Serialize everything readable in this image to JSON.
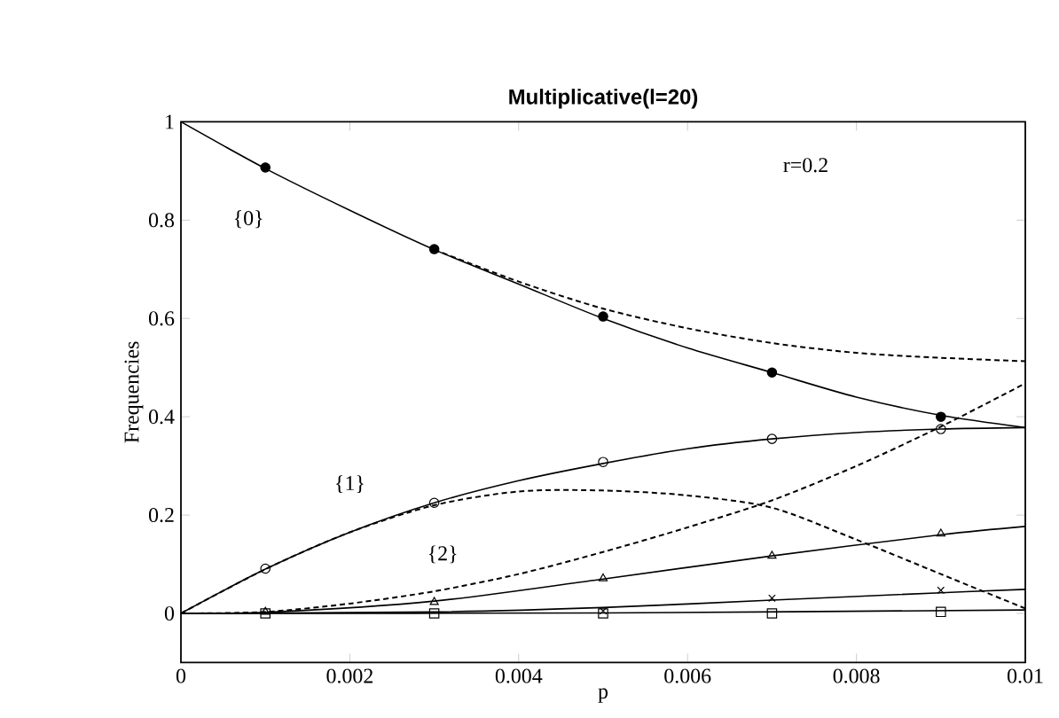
{
  "chart_data": {
    "type": "line",
    "title": "Multiplicative(l=20)",
    "xlabel": "p",
    "ylabel": "Frequencies",
    "xlim": [
      0,
      0.01
    ],
    "ylim": [
      -0.1,
      1
    ],
    "xticks": [
      0,
      0.002,
      0.004,
      0.006,
      0.008,
      0.01
    ],
    "yticks": [
      0,
      0.2,
      0.4,
      0.6,
      0.8,
      1
    ],
    "annotations": [
      "r=0.2",
      "{0}",
      "{1}",
      "{2}"
    ],
    "series": [
      {
        "color": "#000000",
        "line_style": "solid",
        "x": [
          0,
          0.001,
          0.002,
          0.003,
          0.004,
          0.005,
          0.006,
          0.007,
          0.008,
          0.009,
          0.01
        ],
        "values": [
          1,
          0.905,
          0.82,
          0.74,
          0.67,
          0.6,
          0.54,
          0.49,
          0.44,
          0.403,
          0.378
        ]
      },
      {
        "color": "#000000",
        "line_style": "dashed",
        "x": [
          0.003,
          0.004,
          0.005,
          0.006,
          0.007,
          0.008,
          0.009,
          0.01
        ],
        "values": [
          0.74,
          0.675,
          0.62,
          0.58,
          0.55,
          0.53,
          0.52,
          0.513
        ]
      },
      {
        "color": "#000000",
        "line_style": "solid",
        "x": [
          0,
          0.001,
          0.002,
          0.003,
          0.004,
          0.005,
          0.006,
          0.007,
          0.008,
          0.009,
          0.01
        ],
        "values": [
          0,
          0.09,
          0.165,
          0.225,
          0.27,
          0.305,
          0.335,
          0.355,
          0.368,
          0.375,
          0.378
        ]
      },
      {
        "color": "#000000",
        "line_style": "dashed",
        "x": [
          0,
          0.001,
          0.002,
          0.003,
          0.004,
          0.005,
          0.006,
          0.007,
          0.008,
          0.009,
          0.01
        ],
        "values": [
          0,
          0.09,
          0.165,
          0.22,
          0.248,
          0.25,
          0.24,
          0.215,
          0.15,
          0.08,
          0.01
        ]
      },
      {
        "color": "#000000",
        "line_style": "dashed",
        "x": [
          0,
          0.001,
          0.002,
          0.003,
          0.004,
          0.005,
          0.006,
          0.007,
          0.008,
          0.009,
          0.01
        ],
        "values": [
          0,
          0.003,
          0.02,
          0.045,
          0.08,
          0.125,
          0.175,
          0.23,
          0.3,
          0.38,
          0.468
        ]
      },
      {
        "color": "#000000",
        "line_style": "solid",
        "x": [
          0,
          0.001,
          0.003,
          0.005,
          0.007,
          0.009,
          0.01
        ],
        "values": [
          0,
          0.002,
          0.025,
          0.07,
          0.117,
          0.16,
          0.177
        ]
      },
      {
        "color": "#000000",
        "line_style": "solid",
        "x": [
          0,
          0.003,
          0.005,
          0.007,
          0.009,
          0.01
        ],
        "values": [
          0,
          0.003,
          0.012,
          0.027,
          0.042,
          0.049
        ]
      },
      {
        "color": "#000000",
        "line_style": "solid",
        "x": [
          0,
          0.005,
          0.01
        ],
        "values": [
          0,
          0.001,
          0.007
        ]
      },
      {
        "type": "scatter",
        "color": "#000000",
        "marker": "circle",
        "x": [
          0.001,
          0.003,
          0.005,
          0.007,
          0.009
        ],
        "values": [
          0.907,
          0.741,
          0.604,
          0.49,
          0.4
        ]
      },
      {
        "type": "scatter",
        "color": "#000000",
        "marker": "circle",
        "x": [
          0.001,
          0.003,
          0.005,
          0.007,
          0.009
        ],
        "values": [
          0.091,
          0.225,
          0.308,
          0.355,
          0.375
        ]
      },
      {
        "type": "scatter",
        "color": "#000000",
        "marker": "triangle",
        "x": [
          0.001,
          0.003,
          0.005,
          0.007,
          0.009
        ],
        "values": [
          0.003,
          0.023,
          0.071,
          0.117,
          0.162
        ]
      },
      {
        "type": "scatter",
        "color": "#000000",
        "marker": "cross",
        "x": [
          0.005,
          0.007,
          0.009
        ],
        "values": [
          0.005,
          0.031,
          0.047
        ]
      },
      {
        "type": "scatter",
        "color": "#000000",
        "marker": "square",
        "x": [
          0.001,
          0.003,
          0.005,
          0.007,
          0.009
        ],
        "values": [
          0,
          0,
          0,
          0,
          0.003
        ]
      }
    ]
  }
}
